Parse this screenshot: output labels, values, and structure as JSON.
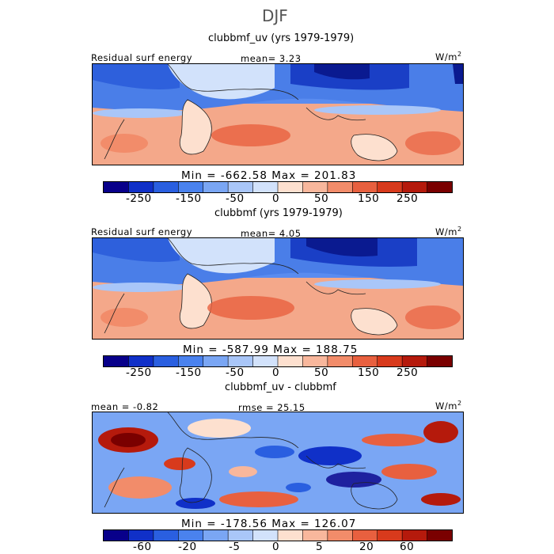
{
  "season": "DJF",
  "units": "W/m",
  "units_sup": "2",
  "panels": [
    {
      "title": "clubbmf_uv (yrs 1979-1979)",
      "left_label": "Residual surf energy",
      "center_label": "mean=   3.23",
      "minmax": "Min = -662.58 Max = 201.83"
    },
    {
      "title": "clubbmf (yrs 1979-1979)",
      "left_label": "Residual surf energy",
      "center_label": "mean=   4.05",
      "minmax": "Min = -587.99 Max = 188.75"
    },
    {
      "title": "clubbmf_uv - clubbmf",
      "left_label": "mean =  -0.82",
      "center_label": "rmse =  25.15",
      "minmax": "Min = -178.56 Max = 126.07"
    }
  ],
  "colorbar_colors": [
    "#08008a",
    "#1030c8",
    "#2a5fe0",
    "#4a82ee",
    "#7aa6f4",
    "#a9c6f8",
    "#d2e2fb",
    "#fde0cf",
    "#f8b79c",
    "#f28c6a",
    "#e8603f",
    "#d83a1c",
    "#b51a0c",
    "#7a0000"
  ],
  "chart_data": [
    {
      "type": "heatmap",
      "title": "clubbmf_uv (yrs 1979-1979)",
      "variable": "Residual surf energy",
      "units": "W/m2",
      "mean": 3.23,
      "min": -662.58,
      "max": 201.83,
      "colorbar_ticks": [
        "-250",
        "-150",
        "-50",
        "0",
        "50",
        "150",
        "250"
      ]
    },
    {
      "type": "heatmap",
      "title": "clubbmf (yrs 1979-1979)",
      "variable": "Residual surf energy",
      "units": "W/m2",
      "mean": 4.05,
      "min": -587.99,
      "max": 188.75,
      "colorbar_ticks": [
        "-250",
        "-150",
        "-50",
        "0",
        "50",
        "150",
        "250"
      ]
    },
    {
      "type": "heatmap",
      "title": "clubbmf_uv - clubbmf",
      "units": "W/m2",
      "mean": -0.82,
      "rmse": 25.15,
      "min": -178.56,
      "max": 126.07,
      "colorbar_ticks": [
        "-60",
        "-20",
        "-5",
        "0",
        "5",
        "20",
        "60"
      ]
    }
  ]
}
